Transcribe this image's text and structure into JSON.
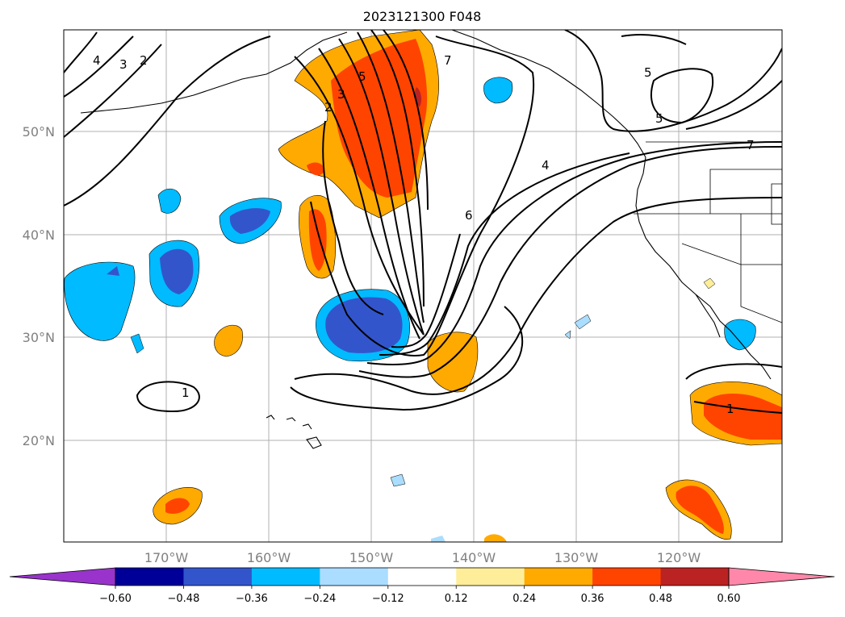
{
  "title": "2023121300 F048",
  "lat_labels": [
    "50°N",
    "40°N",
    "30°N",
    "20°N"
  ],
  "lon_labels": [
    "170°W",
    "160°W",
    "150°W",
    "140°W",
    "130°W",
    "120°W"
  ],
  "colorbar": {
    "ticks": [
      "−0.60",
      "−0.48",
      "−0.36",
      "−0.24",
      "−0.12",
      "0.12",
      "0.24",
      "0.36",
      "0.48",
      "0.60"
    ],
    "colors": [
      "#9933cc",
      "#000099",
      "#3355cc",
      "#00bbff",
      "#aaddff",
      "#ffffff",
      "#ffee99",
      "#ffaa00",
      "#ff4400",
      "#bb2222",
      "#ff88aa"
    ]
  },
  "contour_labels": [
    "4",
    "3",
    "2",
    "5",
    "7",
    "2",
    "3",
    "5",
    "4",
    "5",
    "7",
    "6",
    "1",
    "1"
  ]
}
